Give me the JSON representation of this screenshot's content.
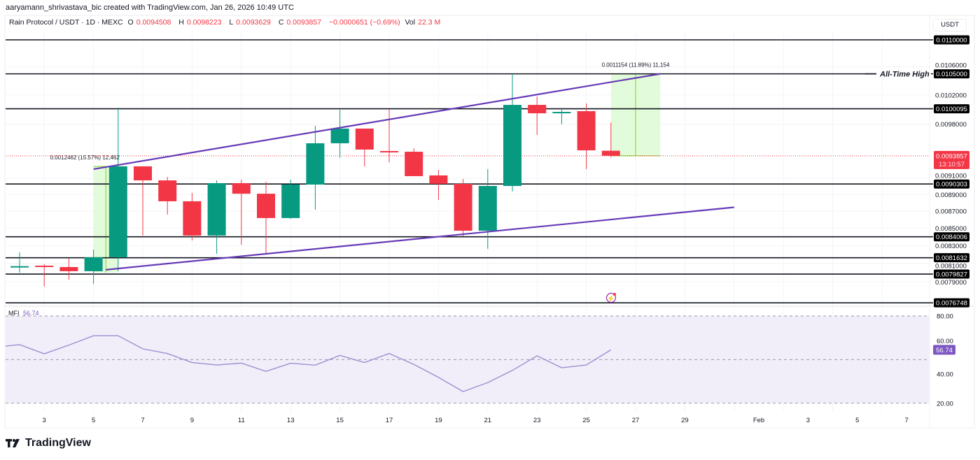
{
  "header": {
    "credit": "aaryamann_shrivastava_bic created with TradingView.com, Jan 26, 2026 10:49 UTC",
    "symbol": "Rain Protocol / USDT · 1D · MEXC",
    "open_label": "O",
    "open": "0.0094508",
    "high_label": "H",
    "high": "0.0098223",
    "low_label": "L",
    "low": "0.0093629",
    "close_label": "C",
    "close": "0.0093857",
    "change": "−0.0000651 (−0.69%)",
    "vol_label": "Vol",
    "vol": "22.3 M"
  },
  "currency_button": "USDT",
  "branding": "TradingView",
  "colors": {
    "up": "#089981",
    "down": "#F23645",
    "channel": "#673AB7",
    "mfi": "#9C8FD0",
    "measure_fill": "#DFFBD6",
    "measure_line": "#7ED321"
  },
  "chart_data": [
    {
      "type": "candlestick",
      "scale": "log",
      "ylim": [
        0.0076,
        0.0112
      ],
      "month": "Jan 2026",
      "x_tick_labels": [
        "3",
        "5",
        "7",
        "9",
        "11",
        "13",
        "15",
        "17",
        "19",
        "21",
        "23",
        "25",
        "27",
        "29",
        "Feb",
        "3",
        "5",
        "7"
      ],
      "y_tick_labels": [
        "0.0106000",
        "0.0102000",
        "0.0098000",
        "0.0091000",
        "0.0089000",
        "0.0087000",
        "0.0085000",
        "0.0083000",
        "0.0081000",
        "0.0079000"
      ],
      "candles": [
        {
          "day": 2,
          "o": 0.008067,
          "h": 0.008224,
          "l": 0.007998,
          "c": 0.00807
        },
        {
          "day": 3,
          "o": 0.008075,
          "h": 0.008091,
          "l": 0.007847,
          "c": 0.00806
        },
        {
          "day": 4,
          "o": 0.00806,
          "h": 0.008153,
          "l": 0.007922,
          "c": 0.008014
        },
        {
          "day": 5,
          "o": 0.008014,
          "h": 0.008255,
          "l": 0.007877,
          "c": 0.008169
        },
        {
          "day": 6,
          "o": 0.008169,
          "h": 0.010025,
          "l": 0.008014,
          "c": 0.009251
        },
        {
          "day": 7,
          "o": 0.009251,
          "h": 0.009251,
          "l": 0.008415,
          "c": 0.009075
        },
        {
          "day": 8,
          "o": 0.009075,
          "h": 0.009119,
          "l": 0.00866,
          "c": 0.008819
        },
        {
          "day": 9,
          "o": 0.008819,
          "h": 0.00892,
          "l": 0.008359,
          "c": 0.008415
        },
        {
          "day": 10,
          "o": 0.008415,
          "h": 0.009075,
          "l": 0.008208,
          "c": 0.009041
        },
        {
          "day": 11,
          "o": 0.009041,
          "h": 0.009084,
          "l": 0.008311,
          "c": 0.008911
        },
        {
          "day": 12,
          "o": 0.008911,
          "h": 0.009058,
          "l": 0.008208,
          "c": 0.008619
        },
        {
          "day": 13,
          "o": 0.008619,
          "h": 0.009084,
          "l": 0.00861,
          "c": 0.009023
        },
        {
          "day": 14,
          "o": 0.009023,
          "h": 0.009779,
          "l": 0.008719,
          "c": 0.009548
        },
        {
          "day": 15,
          "o": 0.009548,
          "h": 0.009996,
          "l": 0.009358,
          "c": 0.009742
        },
        {
          "day": 16,
          "o": 0.009742,
          "h": 0.009742,
          "l": 0.009251,
          "c": 0.009466
        },
        {
          "day": 17,
          "o": 0.009447,
          "h": 0.010006,
          "l": 0.009303,
          "c": 0.009438
        },
        {
          "day": 18,
          "o": 0.009438,
          "h": 0.009484,
          "l": 0.009128,
          "c": 0.009128
        },
        {
          "day": 19,
          "o": 0.009137,
          "h": 0.009207,
          "l": 0.008835,
          "c": 0.009032
        },
        {
          "day": 20,
          "o": 0.009032,
          "h": 0.009093,
          "l": 0.008406,
          "c": 0.008471
        },
        {
          "day": 21,
          "o": 0.008471,
          "h": 0.009216,
          "l": 0.008263,
          "c": 0.009006
        },
        {
          "day": 22,
          "o": 0.009006,
          "h": 0.0105,
          "l": 0.008937,
          "c": 0.010063
        },
        {
          "day": 23,
          "o": 0.010063,
          "h": 0.010179,
          "l": 0.009658,
          "c": 0.009948
        },
        {
          "day": 24,
          "o": 0.009948,
          "h": 0.010025,
          "l": 0.009798,
          "c": 0.009967
        },
        {
          "day": 25,
          "o": 0.009977,
          "h": 0.010083,
          "l": 0.009216,
          "c": 0.009456
        },
        {
          "day": 26,
          "o": 0.0094508,
          "h": 0.0098223,
          "l": 0.0093629,
          "c": 0.0093857
        }
      ],
      "levels": [
        "0.0110000",
        "0.0105000",
        "0.0100095",
        "0.0090303",
        "0.0084006",
        "0.0081632",
        "0.0079827",
        "0.0076748"
      ],
      "ath_label": "All-Time High",
      "ath_level": "0.0105000",
      "current_price": "0.0093857",
      "countdown": "13:10:57",
      "channel": {
        "upper": [
          {
            "day": 5,
            "price": 0.009216
          },
          {
            "day": 28,
            "price": 0.0105
          }
        ],
        "lower": [
          {
            "day": 5.5,
            "price": 0.00803
          },
          {
            "day": 31,
            "price": 0.008747
          }
        ]
      },
      "measures": [
        {
          "from_day": 5,
          "to_day": 6,
          "from_price": 0.008,
          "to_price": 0.009251,
          "label": "0.0012462 (15.57%) 12,462"
        },
        {
          "from_day": 26,
          "to_day": 28,
          "from_price": 0.0093857,
          "to_price": 0.0105,
          "label": "0.0011154 (11.89%) 11,154"
        }
      ]
    },
    {
      "type": "line",
      "name": "MFI",
      "current": "56.74",
      "ylim": [
        20,
        80
      ],
      "y_tick_labels": [
        "80.00",
        "60.00",
        "40.00",
        "20.00"
      ],
      "bands": [
        80,
        50,
        20
      ],
      "days": [
        1,
        2,
        3,
        4,
        5,
        6,
        7,
        8,
        9,
        10,
        11,
        12,
        13,
        14,
        15,
        16,
        17,
        18,
        19,
        20,
        21,
        22,
        23,
        24,
        25,
        26
      ],
      "values": [
        58.5,
        60.3,
        54,
        60,
        66.4,
        66.4,
        57.4,
        54.2,
        48,
        46.3,
        47.6,
        41.9,
        47.5,
        46.2,
        52.9,
        48,
        54.2,
        46.7,
        37.8,
        28,
        34.2,
        42.6,
        52.6,
        44.4,
        46.3,
        56.74
      ]
    }
  ]
}
